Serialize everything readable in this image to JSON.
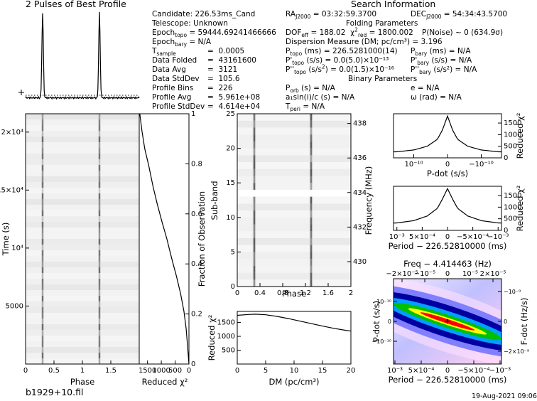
{
  "titles": {
    "profile": "2 Pulses of Best Profile",
    "search": "Search Information",
    "folding": "Folding Parameters",
    "binary": "Binary Parameters"
  },
  "info": {
    "candidate": "Candidate:  226.53ms_Cand",
    "telescope": "Telescope:  Unknown",
    "epoch_topo": "= 59444.69241466666",
    "epoch_bary": "= N/A",
    "tsample": "0.0005",
    "data_folded": "43161600",
    "data_avg": "3121",
    "data_stddev": "105.6",
    "profile_bins": "226",
    "profile_avg": "5.961e+08",
    "profile_stddev": "4.614e+04",
    "ra": "= 03:32:59.3700",
    "dec": "= 54:34:43.5700",
    "dof_eff": "= 188.02",
    "chi2_red": "= 1800.002",
    "p_noise": "P(Noise) ~ 0   (634.9σ)",
    "dm": "Dispersion Measure (DM; pc/cm³) = 3.196",
    "p_topo": "=  226.5281000(14)",
    "pd_topo": "= 0.0(5.0)×10⁻¹³",
    "pdd_topo": "= 0.0(1.5)×10⁻¹⁶",
    "p_bary": "(ms) = N/A",
    "pd_bary": "(s/s) = N/A",
    "pdd_bary": "(s/s²) = N/A",
    "p_orb": "(s) = N/A",
    "a1sini": "a₁sin(i)/c (s) = N/A",
    "t_peri": "= N/A",
    "e": "e = N/A",
    "omega": "ω (rad) = N/A"
  },
  "footer": {
    "filename": "b1929+10.fil",
    "date": "19-Aug-2021 09:06"
  },
  "chart_data": [
    {
      "type": "line",
      "name": "profile",
      "title": "2 Pulses of Best Profile",
      "x": [
        0.0,
        0.28,
        0.3,
        0.32,
        1.28,
        1.3,
        1.32,
        2.0
      ],
      "y": [
        0.02,
        0.02,
        1.0,
        0.02,
        0.02,
        1.0,
        0.02,
        0.02
      ],
      "xlim": [
        0,
        2
      ]
    },
    {
      "type": "heatmap",
      "name": "time-phase",
      "xlabel": "Phase",
      "ylabel": "Time (s)",
      "xticks": [
        "0",
        "0.5",
        "1",
        "1.5"
      ],
      "yticks": [
        "5000",
        "10⁴",
        "1.5×10⁴",
        "2×10⁴"
      ],
      "xlim": [
        0,
        2
      ],
      "ylim": [
        0,
        21580
      ],
      "pulse_phases": [
        0.3,
        1.3
      ]
    },
    {
      "type": "line",
      "name": "chi2-vs-time",
      "xlabel": "Reduced χ²",
      "ylabel": "Fraction of Observation",
      "xticks": [
        "1500",
        "1000",
        "500",
        "0"
      ],
      "yticks": [
        "0",
        "0.2",
        "0.4",
        "0.6",
        "0.8",
        "1"
      ],
      "x": [
        0,
        50,
        100,
        180,
        300,
        450,
        620,
        800,
        980,
        1150,
        1300,
        1450,
        1600,
        1700,
        1780
      ],
      "y": [
        0,
        0.07,
        0.14,
        0.21,
        0.28,
        0.35,
        0.42,
        0.5,
        0.57,
        0.64,
        0.71,
        0.79,
        0.86,
        0.93,
        1.0
      ],
      "xlim": [
        1800,
        0
      ],
      "ylim": [
        0,
        1
      ]
    },
    {
      "type": "heatmap",
      "name": "subband-phase",
      "xlabel": "Phase",
      "ylabel": "Sub-band",
      "y2label": "Frequency (MHz)",
      "xticks": [
        "0",
        "0.4",
        "0.8",
        "1.2",
        "1.6",
        "2"
      ],
      "yticks": [
        "0",
        "5",
        "10",
        "15",
        "20",
        "25"
      ],
      "y2ticks": [
        "430",
        "432",
        "434",
        "436",
        "438"
      ],
      "xlim": [
        0,
        2
      ],
      "ylim": [
        0,
        25
      ],
      "masked_subbands": [
        13,
        14
      ],
      "pulse_phases": [
        0.3,
        1.3
      ]
    },
    {
      "type": "line",
      "name": "chi2-vs-dm",
      "xlabel": "DM (pc/cm³)",
      "ylabel": "Reduced χ²",
      "xticks": [
        "0",
        "5",
        "10",
        "15",
        "20"
      ],
      "yticks": [
        "500",
        "1000",
        "1500"
      ],
      "x": [
        0,
        2,
        3.2,
        5,
        7,
        9,
        11,
        13,
        15,
        17,
        19,
        20
      ],
      "y": [
        1760,
        1790,
        1800,
        1780,
        1720,
        1640,
        1550,
        1460,
        1370,
        1290,
        1220,
        1190
      ],
      "xlim": [
        0,
        20
      ],
      "ylim": [
        0,
        1900
      ]
    },
    {
      "type": "line",
      "name": "chi2-vs-pdot",
      "xlabel": "P-dot (s/s)",
      "ylabel": "Reduced χ²",
      "xticks": [
        "10⁻¹⁰",
        "0",
        "−10⁻¹⁰"
      ],
      "yticks": [
        "0",
        "500",
        "1000",
        "1500"
      ],
      "x": [
        -1.5,
        -1.0,
        -0.6,
        -0.3,
        -0.15,
        0,
        0.15,
        0.3,
        0.6,
        1.0,
        1.5
      ],
      "y": [
        260,
        340,
        500,
        800,
        1200,
        1800,
        1200,
        800,
        500,
        340,
        260
      ],
      "xlim": [
        -1.6,
        1.6
      ],
      "ylim": [
        0,
        1900
      ]
    },
    {
      "type": "line",
      "name": "chi2-vs-period",
      "xlabel": "Period − 226.52810000 (ms)",
      "ylabel": "Reduced χ²",
      "xticks": [
        "10⁻³",
        "5×10⁻⁴",
        "0",
        "−5×10⁻⁴",
        "−10⁻³"
      ],
      "yticks": [
        "0",
        "500",
        "1000",
        "1500"
      ],
      "x": [
        -1.5,
        -1.0,
        -0.6,
        -0.3,
        -0.15,
        0,
        0.15,
        0.3,
        0.6,
        1.0,
        1.5
      ],
      "y": [
        320,
        420,
        620,
        950,
        1350,
        1800,
        1350,
        950,
        620,
        420,
        320
      ],
      "xlim": [
        -1.6,
        1.6
      ],
      "ylim": [
        0,
        1900
      ]
    },
    {
      "type": "heatmap",
      "name": "pdot-period",
      "title": "Freq − 4.414463 (Hz)",
      "xlabel": "Period − 226.52810000 (ms)",
      "ylabel": "P-dot (s/s)",
      "y2label": "F-dot (Hz/s)",
      "xticks": [
        "10⁻³",
        "5×10⁻⁴",
        "0",
        "−5×10⁻⁴",
        "−10⁻³"
      ],
      "x2ticks": [
        "−2×10⁻⁵",
        "−10⁻⁵",
        "0",
        "10⁻⁵",
        "2×10⁻⁵"
      ],
      "yticks": [
        "10⁻¹⁰",
        "0",
        "−10⁻¹⁰"
      ],
      "y2ticks": [
        "−10⁻⁹",
        "0",
        "−2×10⁻⁹"
      ]
    }
  ]
}
